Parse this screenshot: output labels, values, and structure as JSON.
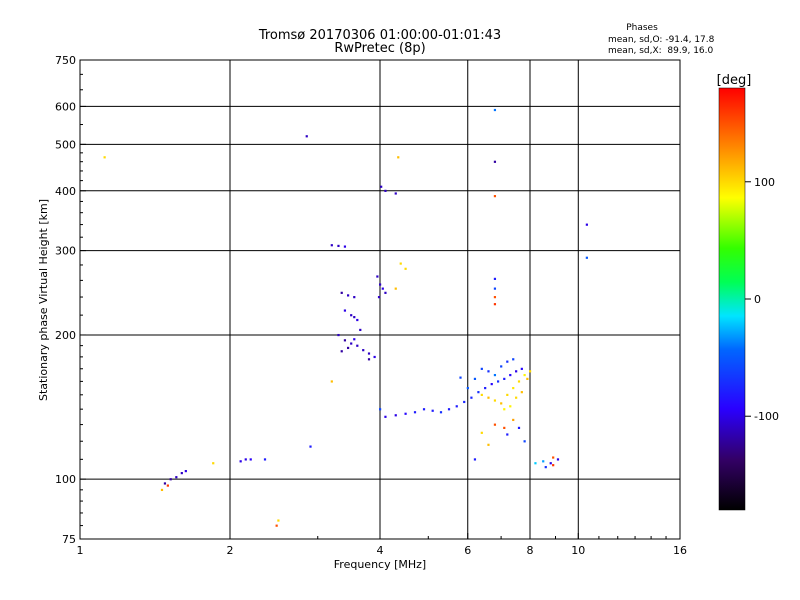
{
  "chart_data": {
    "type": "scatter",
    "title": "Tromsø 20170306 01:00:00-01:01:43",
    "subtitle": "RwPretec (8p)",
    "xlabel": "Frequency [MHz]",
    "ylabel": "Stationary phase Virtual Height [km]",
    "x_scale": "log",
    "y_scale": "log",
    "xlim": [
      1,
      16
    ],
    "ylim": [
      75,
      750
    ],
    "x_ticks": [
      1,
      2,
      4,
      6,
      8,
      10,
      16
    ],
    "x_tick_labels": [
      "1",
      "2",
      "4",
      "6",
      "8",
      "10",
      "16"
    ],
    "y_ticks": [
      75,
      100,
      200,
      300,
      400,
      500,
      600,
      750
    ],
    "y_tick_labels": [
      "75",
      "100",
      "200",
      "300",
      "400",
      "500",
      "600",
      "750"
    ],
    "x_gridlines": [
      2,
      4,
      6,
      8,
      10
    ],
    "y_gridlines": [
      100,
      200,
      300,
      400,
      500,
      600
    ],
    "grid": true,
    "stats": {
      "heading": "Phases",
      "line_o": "mean, sd,O: -91.4, 17.8",
      "line_x": "mean, sd,X:  89.9, 16.0"
    },
    "colorbar": {
      "label": "[deg]",
      "min": -180,
      "max": 180,
      "ticks": [
        100,
        0,
        -100
      ],
      "tick_labels": [
        "100",
        "0",
        "-100"
      ]
    },
    "points": [
      [
        1.12,
        470,
        100
      ],
      [
        2.85,
        520,
        -110
      ],
      [
        4.35,
        470,
        110
      ],
      [
        6.8,
        590,
        -40
      ],
      [
        6.8,
        460,
        -120
      ],
      [
        6.8,
        390,
        150
      ],
      [
        10.4,
        340,
        -100
      ],
      [
        10.4,
        290,
        -50
      ],
      [
        1.48,
        98,
        -120
      ],
      [
        1.52,
        100,
        -120
      ],
      [
        1.56,
        101,
        -110
      ],
      [
        1.6,
        103,
        -110
      ],
      [
        1.63,
        104,
        -100
      ],
      [
        1.5,
        97,
        160
      ],
      [
        1.46,
        95,
        110
      ],
      [
        1.85,
        108,
        100
      ],
      [
        2.1,
        109,
        -100
      ],
      [
        2.15,
        110,
        -100
      ],
      [
        2.2,
        110,
        -95
      ],
      [
        2.35,
        110,
        -80
      ],
      [
        2.9,
        117,
        -80
      ],
      [
        2.5,
        82,
        100
      ],
      [
        2.48,
        80,
        150
      ],
      [
        3.2,
        308,
        -110
      ],
      [
        3.3,
        307,
        -110
      ],
      [
        3.4,
        306,
        -100
      ],
      [
        3.35,
        245,
        -120
      ],
      [
        3.45,
        242,
        -110
      ],
      [
        3.55,
        240,
        -110
      ],
      [
        3.4,
        225,
        -100
      ],
      [
        3.5,
        220,
        -110
      ],
      [
        3.55,
        218,
        -110
      ],
      [
        3.6,
        215,
        -100
      ],
      [
        3.3,
        200,
        -110
      ],
      [
        3.4,
        195,
        -120
      ],
      [
        3.5,
        192,
        -110
      ],
      [
        3.6,
        190,
        -110
      ],
      [
        3.7,
        186,
        -110
      ],
      [
        3.8,
        183,
        -110
      ],
      [
        3.9,
        180,
        -100
      ],
      [
        3.35,
        185,
        -120
      ],
      [
        3.45,
        188,
        -120
      ],
      [
        3.55,
        196,
        -100
      ],
      [
        3.65,
        205,
        -110
      ],
      [
        3.2,
        160,
        110
      ],
      [
        3.8,
        178,
        -120
      ],
      [
        3.95,
        265,
        -110
      ],
      [
        4.0,
        255,
        -110
      ],
      [
        4.05,
        250,
        -100
      ],
      [
        4.1,
        245,
        -110
      ],
      [
        3.98,
        240,
        -110
      ],
      [
        4.02,
        408,
        -110
      ],
      [
        4.1,
        400,
        -110
      ],
      [
        4.3,
        395,
        -110
      ],
      [
        4.4,
        282,
        100
      ],
      [
        4.5,
        275,
        100
      ],
      [
        4.3,
        250,
        110
      ],
      [
        4.0,
        140,
        -60
      ],
      [
        4.1,
        135,
        -100
      ],
      [
        4.3,
        136,
        -100
      ],
      [
        4.5,
        137,
        -90
      ],
      [
        4.7,
        138,
        -80
      ],
      [
        4.9,
        140,
        -80
      ],
      [
        5.1,
        139,
        -80
      ],
      [
        5.3,
        138,
        -70
      ],
      [
        5.5,
        140,
        -80
      ],
      [
        5.7,
        142,
        -80
      ],
      [
        5.9,
        145,
        -75
      ],
      [
        6.1,
        148,
        -75
      ],
      [
        6.3,
        152,
        -70
      ],
      [
        6.5,
        155,
        -80
      ],
      [
        6.7,
        158,
        -90
      ],
      [
        6.9,
        160,
        -70
      ],
      [
        7.1,
        162,
        -80
      ],
      [
        7.3,
        165,
        -90
      ],
      [
        7.5,
        168,
        -100
      ],
      [
        7.7,
        170,
        -90
      ],
      [
        5.8,
        163,
        -60
      ],
      [
        6.0,
        155,
        -50
      ],
      [
        6.2,
        162,
        -50
      ],
      [
        6.4,
        170,
        -60
      ],
      [
        6.6,
        168,
        -70
      ],
      [
        6.8,
        165,
        -40
      ],
      [
        7.0,
        172,
        -60
      ],
      [
        7.2,
        176,
        -70
      ],
      [
        7.4,
        178,
        -60
      ],
      [
        6.4,
        150,
        100
      ],
      [
        6.6,
        148,
        110
      ],
      [
        6.8,
        146,
        100
      ],
      [
        7.0,
        144,
        110
      ],
      [
        7.2,
        150,
        100
      ],
      [
        7.4,
        155,
        95
      ],
      [
        7.6,
        160,
        100
      ],
      [
        7.8,
        165,
        90
      ],
      [
        8.0,
        168,
        100
      ],
      [
        7.9,
        162,
        110
      ],
      [
        7.7,
        152,
        110
      ],
      [
        7.5,
        148,
        100
      ],
      [
        7.1,
        140,
        90
      ],
      [
        7.3,
        142,
        90
      ],
      [
        6.2,
        110,
        -80
      ],
      [
        6.4,
        125,
        100
      ],
      [
        6.6,
        118,
        110
      ],
      [
        6.8,
        130,
        150
      ],
      [
        7.1,
        128,
        150
      ],
      [
        7.2,
        124,
        -80
      ],
      [
        7.4,
        133,
        120
      ],
      [
        7.6,
        128,
        -80
      ],
      [
        7.8,
        120,
        -60
      ],
      [
        8.2,
        108,
        -20
      ],
      [
        8.5,
        109,
        -30
      ],
      [
        8.6,
        106,
        -70
      ],
      [
        8.8,
        108,
        -100
      ],
      [
        9.1,
        110,
        -100
      ],
      [
        8.9,
        111,
        150
      ],
      [
        6.8,
        262,
        -80
      ],
      [
        6.8,
        250,
        -60
      ],
      [
        6.8,
        240,
        150
      ],
      [
        6.8,
        232,
        160
      ],
      [
        8.9,
        107,
        160
      ]
    ]
  }
}
